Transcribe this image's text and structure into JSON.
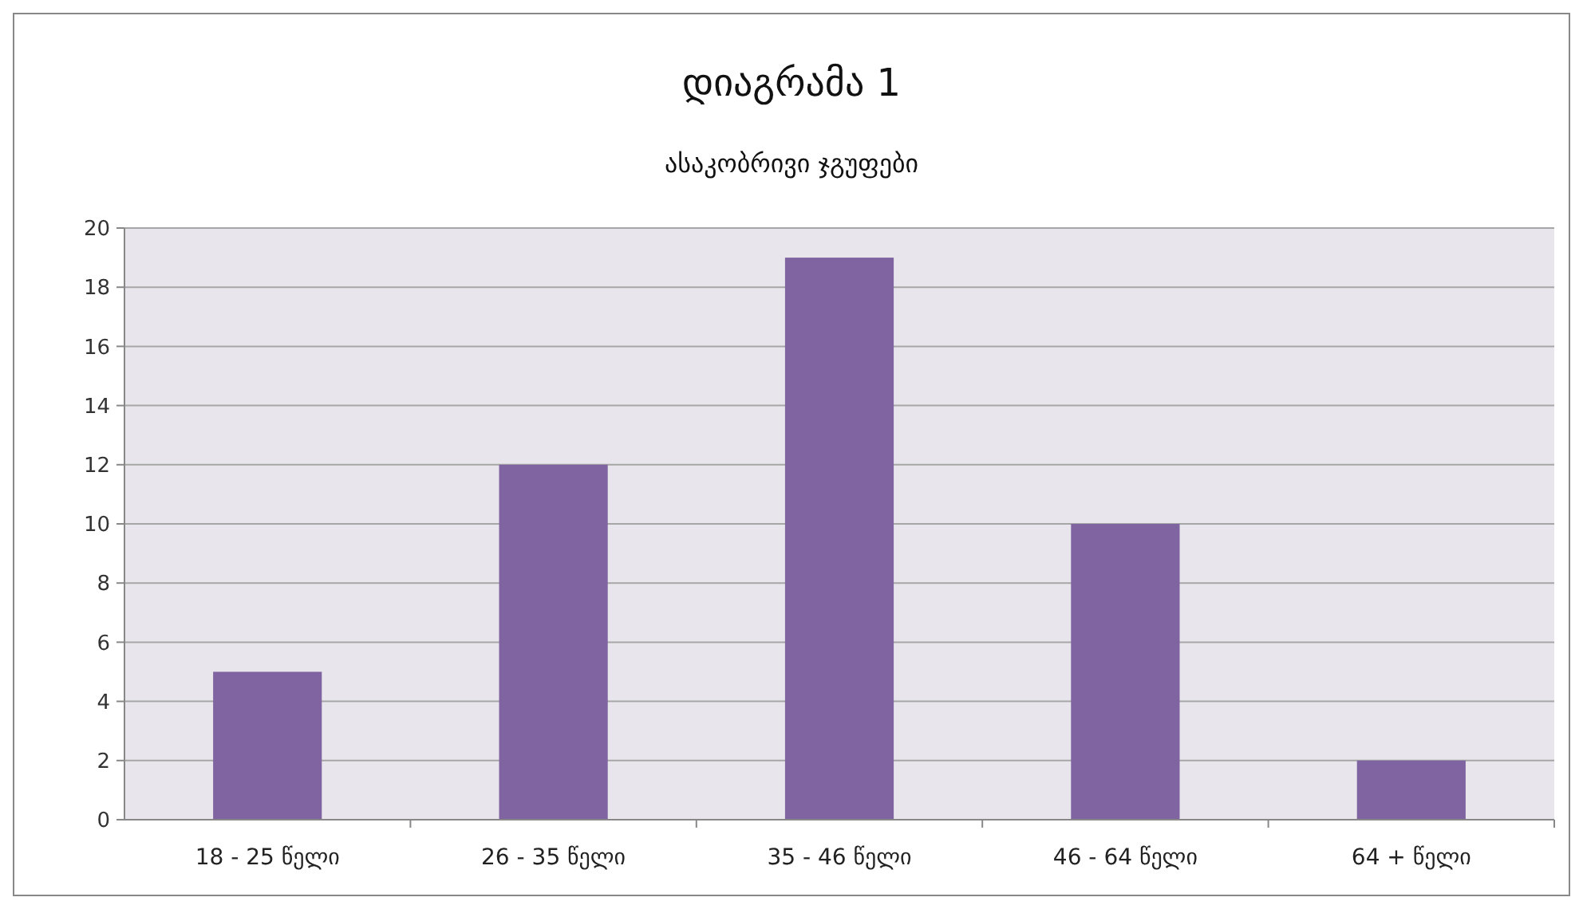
{
  "chart_data": {
    "type": "bar",
    "title": "დიაგრამა 1",
    "subtitle": "ასაკობრივი ჯგუფები",
    "categories": [
      "18 - 25 წელი",
      "26 - 35 წელი",
      "35 - 46 წელი",
      "46 - 64 წელი",
      "64 + წელი"
    ],
    "values": [
      5,
      12,
      19,
      10,
      2
    ],
    "color": "#8064a2",
    "ylim": [
      0,
      20
    ],
    "yticks": [
      0,
      2,
      4,
      6,
      8,
      10,
      12,
      14,
      16,
      18,
      20
    ],
    "grid": "y"
  }
}
